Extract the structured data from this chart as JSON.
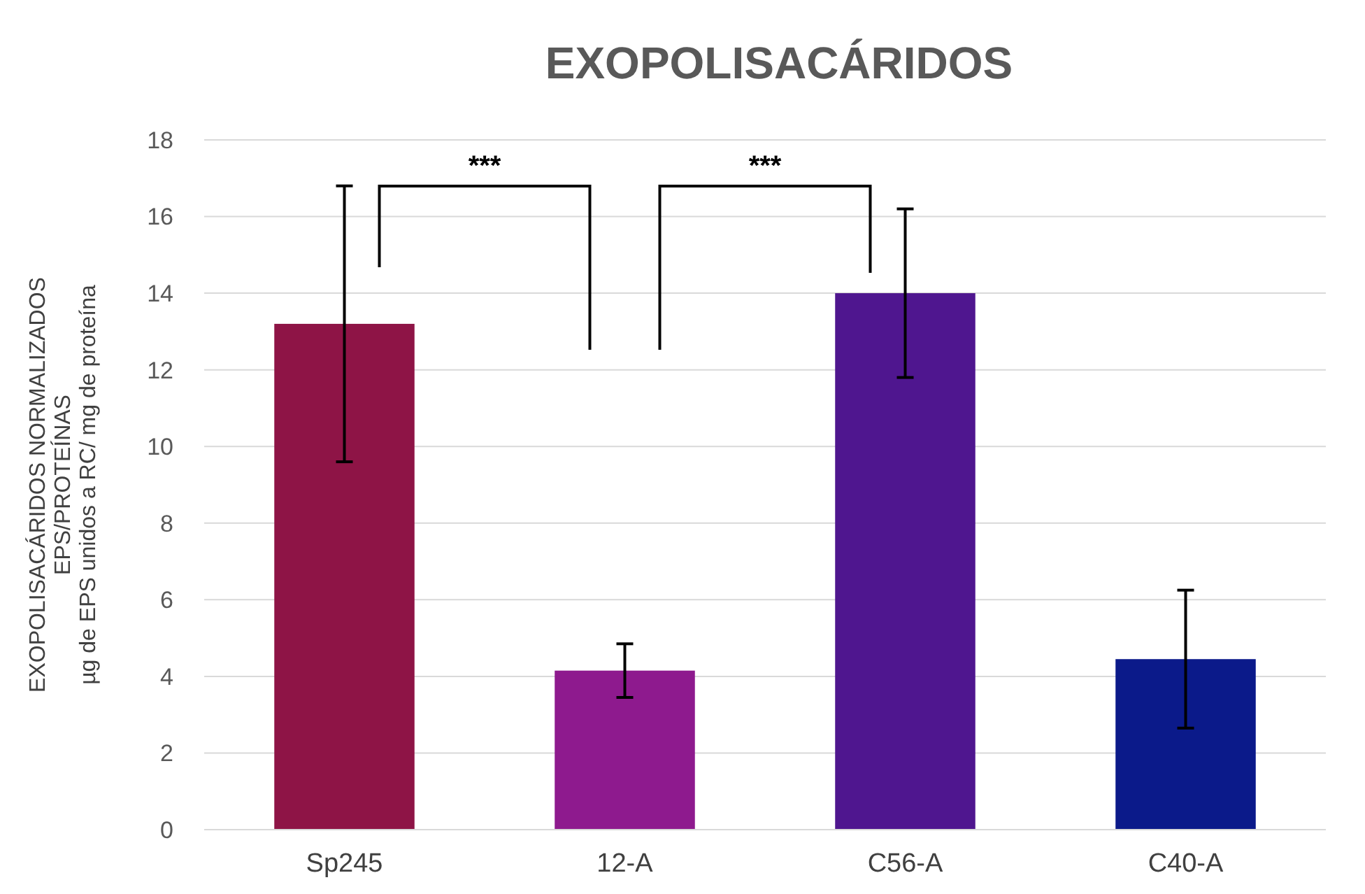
{
  "chart_data": {
    "type": "bar",
    "title": "EXOPOLISACÁRIDOS",
    "ylabel": "EXOPOLISACÁRIDOS NORMALIZADOS\nEPS/PROTEÍNAS\nµg de EPS unidos a RC/ mg de proteína",
    "categories": [
      "Sp245",
      "12-A",
      "C56-A",
      "C40-A"
    ],
    "values": [
      13.2,
      4.15,
      14.0,
      4.45
    ],
    "colors": [
      "#8e1446",
      "#8e1a8e",
      "#4f168f",
      "#0b1a8a"
    ],
    "errors": [
      3.6,
      0.7,
      2.2,
      1.8
    ],
    "ylim": [
      0,
      18
    ],
    "yticks": [
      0,
      2,
      4,
      6,
      8,
      10,
      12,
      14,
      16,
      18
    ],
    "grid": "y",
    "annotations": [
      "***",
      "***"
    ]
  }
}
